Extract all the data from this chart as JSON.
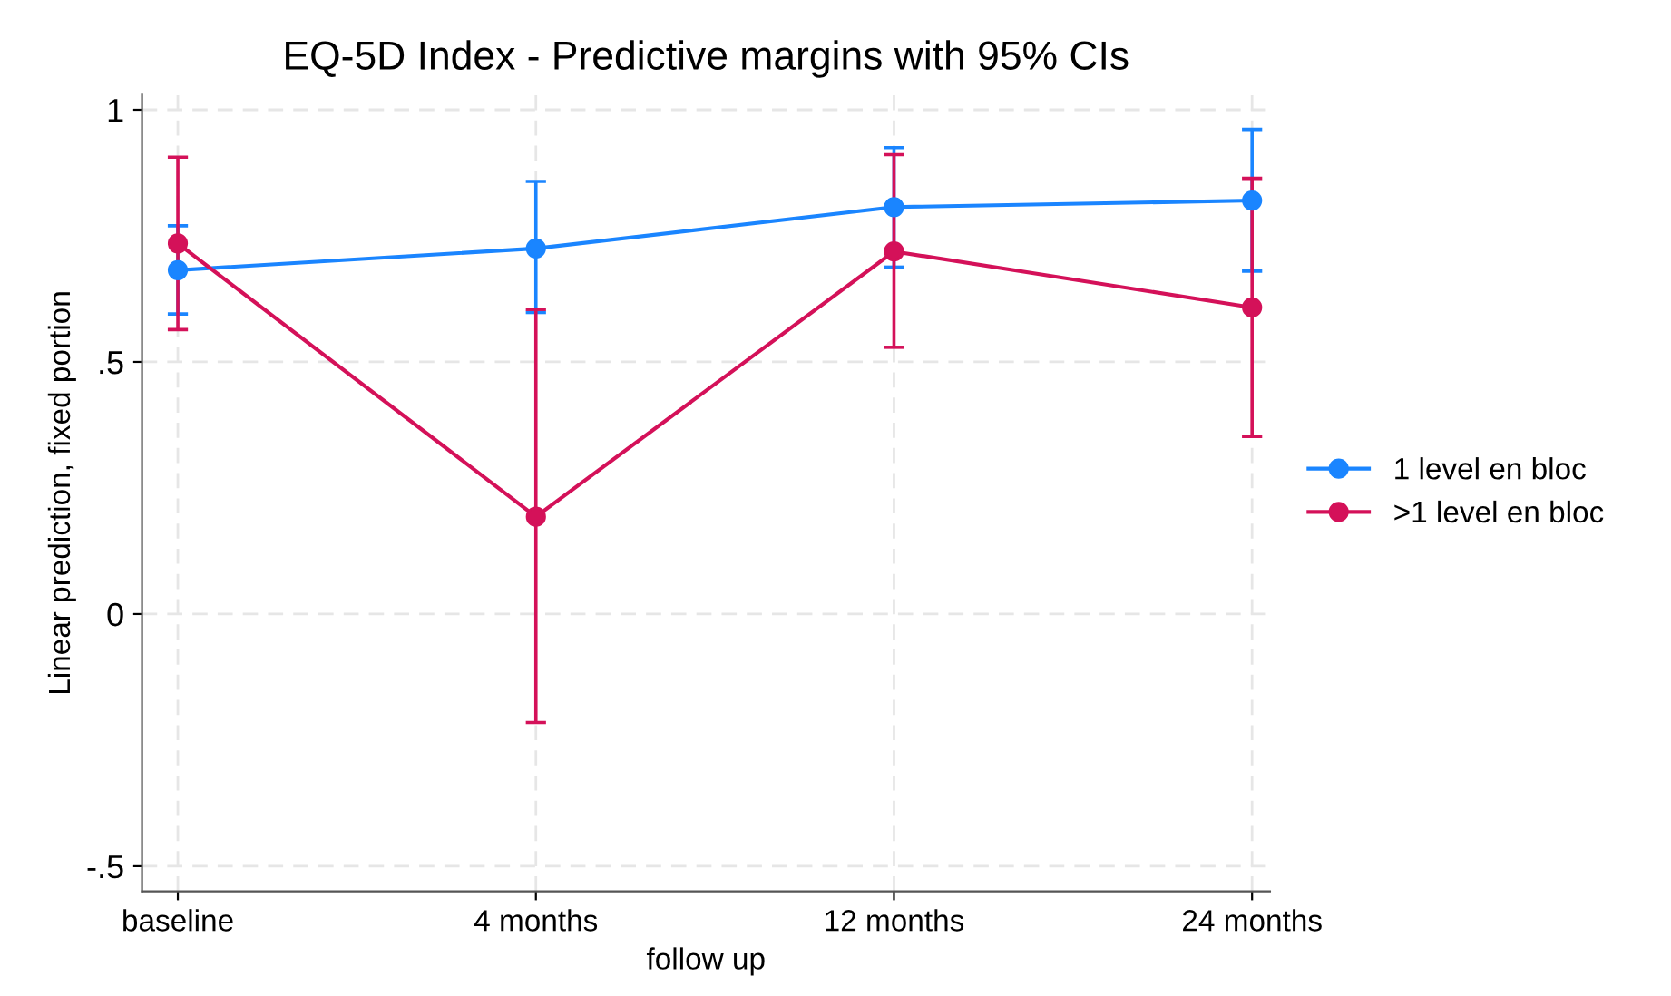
{
  "chart_data": {
    "type": "line",
    "title": "EQ-5D Index - Predictive margins with 95% CIs",
    "xlabel": "follow up",
    "ylabel": "Linear prediction, fixed portion",
    "categories": [
      "baseline",
      "4 months",
      "12 months",
      "24 months"
    ],
    "series": [
      {
        "name": "1 level en bloc",
        "color": "#1a85ff",
        "values": [
          0.682,
          0.725,
          0.807,
          0.82
        ],
        "errors": [
          [
            0.595,
            0.77
          ],
          [
            0.598,
            0.858
          ],
          [
            0.688,
            0.925
          ],
          [
            0.68,
            0.961
          ]
        ]
      },
      {
        "name": ">1 level en bloc",
        "color": "#d41159",
        "values": [
          0.735,
          0.193,
          0.719,
          0.608
        ],
        "errors": [
          [
            0.564,
            0.906
          ],
          [
            -0.215,
            0.604
          ],
          [
            0.529,
            0.911
          ],
          [
            0.352,
            0.864
          ]
        ]
      }
    ],
    "ylim": [
      -0.55,
      1.03
    ],
    "yticks": [
      {
        "value": -0.5,
        "label": "-.5"
      },
      {
        "value": 0,
        "label": "0"
      },
      {
        "value": 0.5,
        "label": ".5"
      },
      {
        "value": 1,
        "label": "1"
      }
    ],
    "grid": true,
    "legend": "right",
    "marker": "circle",
    "line_style": "solid"
  }
}
